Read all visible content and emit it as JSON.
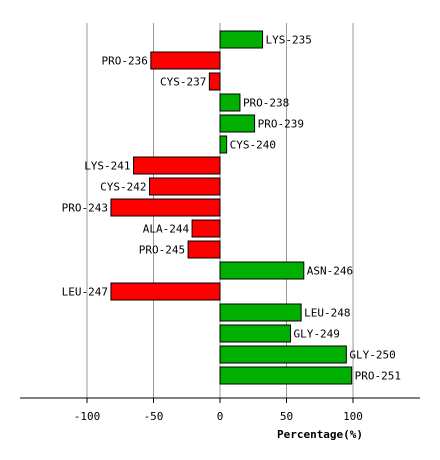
{
  "chart_data": {
    "type": "bar",
    "orientation": "horizontal",
    "xlabel": "Percentage(%)",
    "xlim": [
      -150,
      150
    ],
    "xticks": [
      -100,
      -50,
      0,
      50,
      100
    ],
    "xtick_labels": [
      "-100",
      "-50",
      "0",
      "50",
      "100"
    ],
    "grid": true,
    "colors": {
      "positive": "#00b000",
      "negative": "#ff0000"
    },
    "categories": [
      "LYS-235",
      "PRO-236",
      "CYS-237",
      "PRO-238",
      "PRO-239",
      "CYS-240",
      "LYS-241",
      "CYS-242",
      "PRO-243",
      "ALA-244",
      "PRO-245",
      "ASN-246",
      "LEU-247",
      "LEU-248",
      "GLY-249",
      "GLY-250",
      "PRO-251"
    ],
    "values": [
      32,
      -52,
      -8,
      15,
      26,
      5,
      -65,
      -53,
      -82,
      -21,
      -24,
      63,
      -82,
      61,
      53,
      95,
      99
    ]
  }
}
